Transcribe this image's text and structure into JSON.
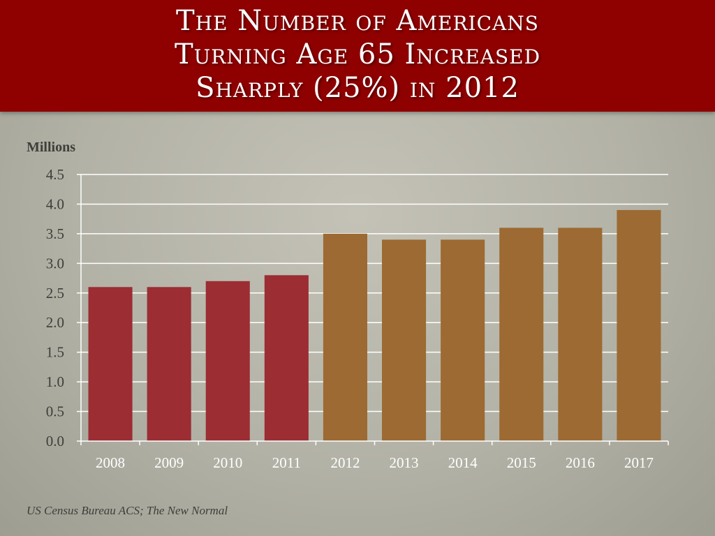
{
  "title": {
    "lines": [
      "The Number of Americans",
      "Turning Age 65 Increased",
      "Sharply (25%) in 2012"
    ]
  },
  "unit_label": "Millions",
  "source": "US Census Bureau ACS; The New Normal",
  "colors": {
    "title_band": "#8f0000",
    "bar_before": "#9b2d33",
    "bar_after": "#9c6a32",
    "gridline": "#ffffff",
    "text": "#3e3e3a"
  },
  "chart_data": {
    "type": "bar",
    "categories": [
      "2008",
      "2009",
      "2010",
      "2011",
      "2012",
      "2013",
      "2014",
      "2015",
      "2016",
      "2017"
    ],
    "values": [
      2.6,
      2.6,
      2.7,
      2.8,
      3.5,
      3.4,
      3.4,
      3.6,
      3.6,
      3.9
    ],
    "highlight_from_index": 4,
    "ylabel": "Millions",
    "ylim": [
      0,
      4.5
    ],
    "yticks": [
      "0.0",
      "0.5",
      "1.0",
      "1.5",
      "2.0",
      "2.5",
      "3.0",
      "3.5",
      "4.0",
      "4.5"
    ],
    "grid": true
  }
}
